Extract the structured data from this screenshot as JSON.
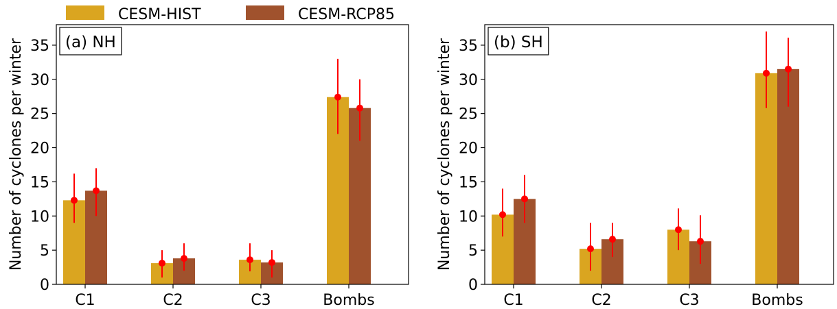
{
  "legend": {
    "items": [
      {
        "label": "CESM-HIST",
        "color": "#DAA520"
      },
      {
        "label": "CESM-RCP85",
        "color": "#A0522D"
      }
    ]
  },
  "chart_data": [
    {
      "type": "bar",
      "panel_label": "(a) NH",
      "ylabel": "Number of cyclones per winter",
      "xlabel": "",
      "categories": [
        "C1",
        "C2",
        "C3",
        "Bombs"
      ],
      "ylim": [
        0,
        38
      ],
      "yticks": [
        0,
        5,
        10,
        15,
        20,
        25,
        30,
        35
      ],
      "series": [
        {
          "name": "CESM-HIST",
          "color": "#DAA520",
          "values": [
            12.3,
            3.1,
            3.6,
            27.4
          ],
          "error_low": [
            9.0,
            1.0,
            1.9,
            22.0
          ],
          "error_high": [
            16.2,
            5.0,
            6.0,
            33.0
          ]
        },
        {
          "name": "CESM-RCP85",
          "color": "#A0522D",
          "values": [
            13.7,
            3.8,
            3.2,
            25.8
          ],
          "error_low": [
            10.0,
            2.0,
            1.0,
            21.0
          ],
          "error_high": [
            17.0,
            6.0,
            5.0,
            30.0
          ]
        }
      ],
      "error_color": "#FF0000"
    },
    {
      "type": "bar",
      "panel_label": "(b) SH",
      "ylabel": "Number of cyclones per winter",
      "xlabel": "",
      "categories": [
        "C1",
        "C2",
        "C3",
        "Bombs"
      ],
      "ylim": [
        0,
        38
      ],
      "yticks": [
        0,
        5,
        10,
        15,
        20,
        25,
        30,
        35
      ],
      "series": [
        {
          "name": "CESM-HIST",
          "color": "#DAA520",
          "values": [
            10.2,
            5.2,
            8.0,
            30.9
          ],
          "error_low": [
            7.0,
            2.0,
            5.0,
            25.8
          ],
          "error_high": [
            14.0,
            9.0,
            11.1,
            37.0
          ]
        },
        {
          "name": "CESM-RCP85",
          "color": "#A0522D",
          "values": [
            12.5,
            6.6,
            6.3,
            31.5
          ],
          "error_low": [
            9.0,
            4.0,
            3.0,
            26.0
          ],
          "error_high": [
            16.0,
            9.0,
            10.1,
            36.1
          ]
        }
      ],
      "error_color": "#FF0000"
    }
  ]
}
